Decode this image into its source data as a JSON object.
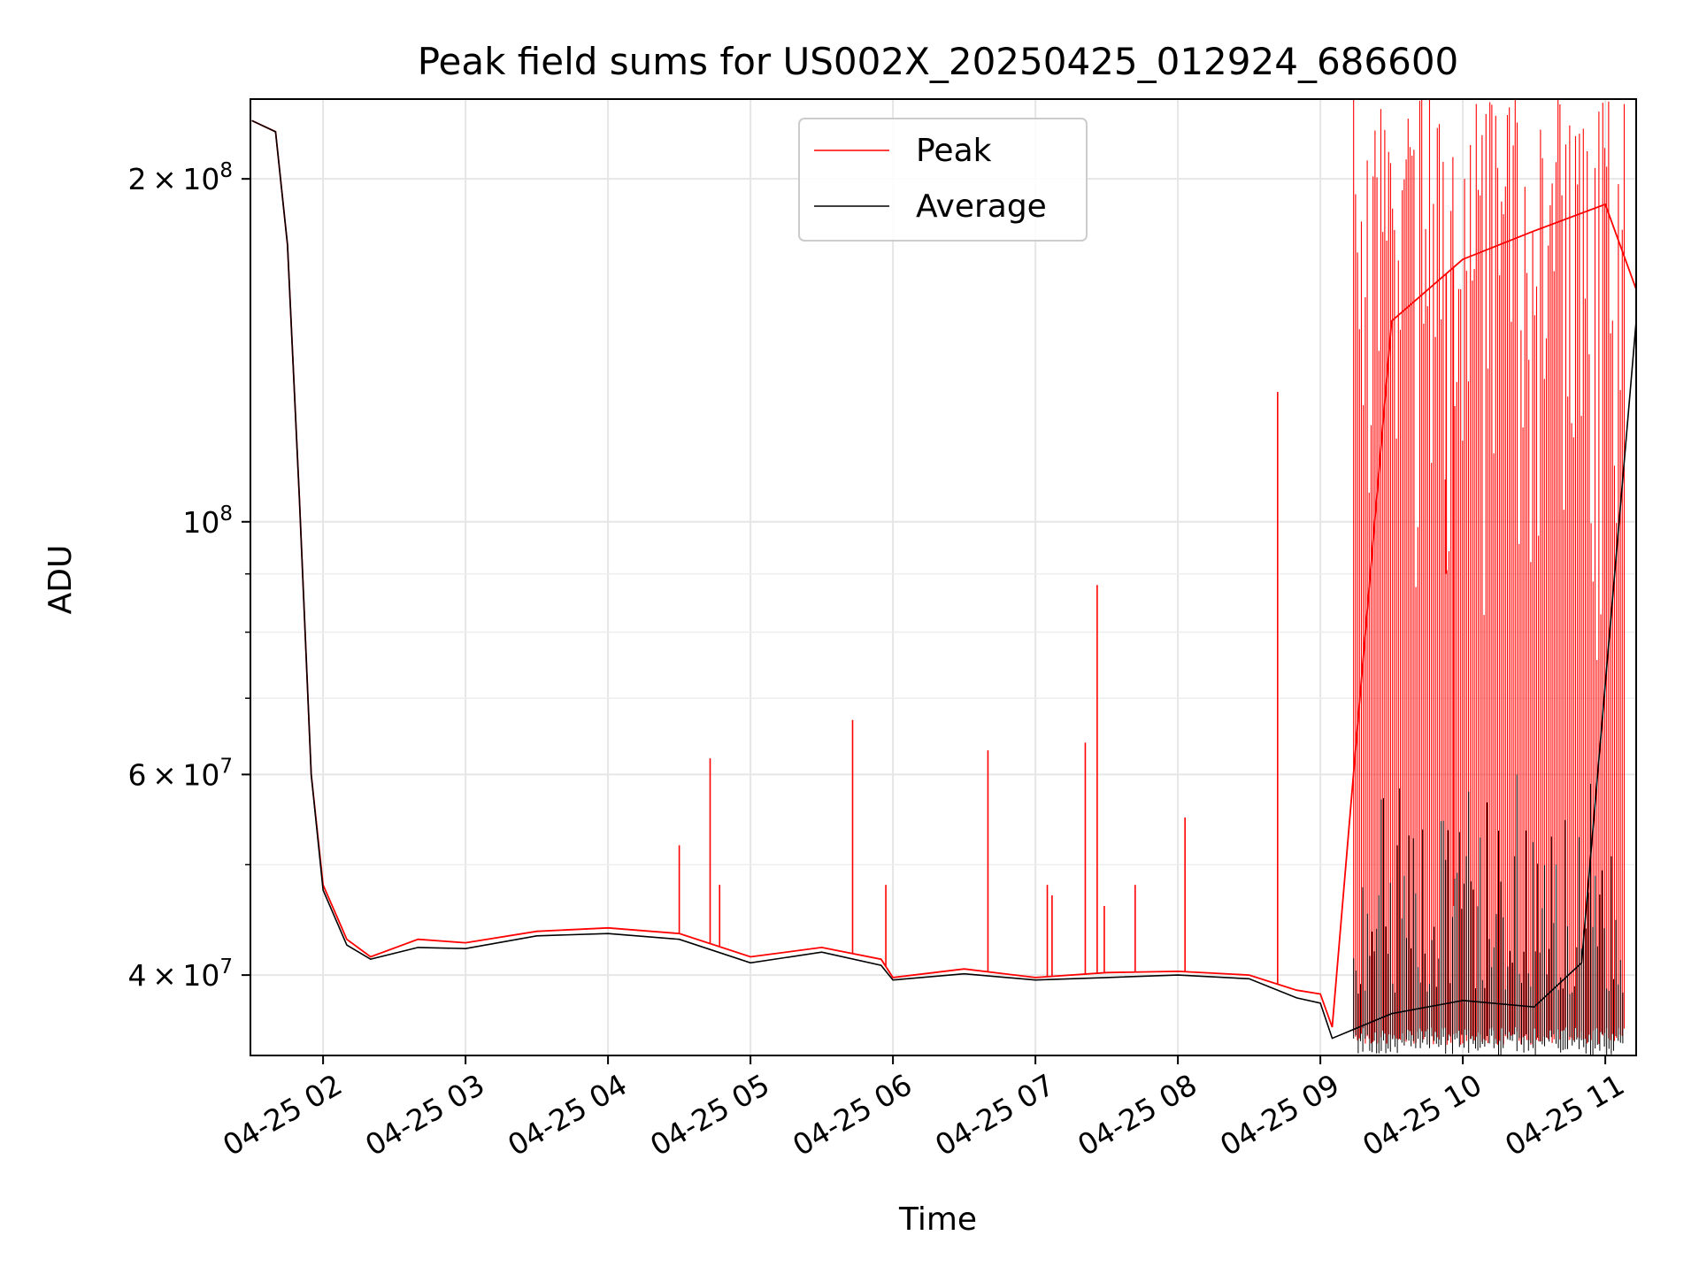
{
  "chart_data": {
    "type": "line",
    "title": "Peak field sums for US002X_20250425_012924_686600",
    "xlabel": "Time",
    "ylabel": "ADU",
    "y_scale": "log",
    "ylim": [
      34000000,
      235000000
    ],
    "xlim": [
      "04-25 01:29:24",
      "04-25 11:13"
    ],
    "x_tick_labels": [
      "04-25 02",
      "04-25 03",
      "04-25 04",
      "04-25 05",
      "04-25 06",
      "04-25 07",
      "04-25 08",
      "04-25 09",
      "04-25 10",
      "04-25 11"
    ],
    "y_tick_labels": [
      {
        "value": 40000000,
        "mantissa": "4",
        "exp": "7"
      },
      {
        "value": 60000000,
        "mantissa": "6",
        "exp": "7"
      },
      {
        "value": 100000000,
        "mantissa": "",
        "exp": "8"
      },
      {
        "value": 200000000,
        "mantissa": "2",
        "exp": "8"
      }
    ],
    "grid": true,
    "legend_position": "top-center",
    "series": [
      {
        "name": "Peak",
        "color": "#ff0000",
        "points": [
          [
            "01:30",
            225000000
          ],
          [
            "01:40",
            220000000
          ],
          [
            "01:45",
            175000000
          ],
          [
            "01:50",
            105000000
          ],
          [
            "01:55",
            60000000
          ],
          [
            "02:00",
            48000000
          ],
          [
            "02:10",
            43000000
          ],
          [
            "02:20",
            41500000
          ],
          [
            "02:40",
            43000000
          ],
          [
            "03:00",
            42700000
          ],
          [
            "03:30",
            43700000
          ],
          [
            "04:00",
            44000000
          ],
          [
            "04:30",
            43500000
          ],
          [
            "05:00",
            41500000
          ],
          [
            "05:30",
            42300000
          ],
          [
            "05:55",
            41300000
          ],
          [
            "06:00",
            39800000
          ],
          [
            "06:30",
            40500000
          ],
          [
            "07:00",
            39800000
          ],
          [
            "07:30",
            40200000
          ],
          [
            "08:00",
            40300000
          ],
          [
            "08:30",
            40000000
          ],
          [
            "08:50",
            38800000
          ],
          [
            "09:00",
            38500000
          ],
          [
            "09:05",
            36000000
          ],
          [
            "09:30",
            150000000
          ],
          [
            "10:00",
            170000000
          ],
          [
            "10:30",
            180000000
          ],
          [
            "11:00",
            190000000
          ],
          [
            "11:13",
            160000000
          ]
        ],
        "spikes": [
          [
            "04:30",
            52000000
          ],
          [
            "04:43",
            62000000
          ],
          [
            "04:47",
            48000000
          ],
          [
            "05:43",
            67000000
          ],
          [
            "05:57",
            48000000
          ],
          [
            "06:40",
            63000000
          ],
          [
            "07:05",
            48000000
          ],
          [
            "07:07",
            47000000
          ],
          [
            "07:21",
            64000000
          ],
          [
            "07:26",
            88000000
          ],
          [
            "07:29",
            46000000
          ],
          [
            "07:42",
            48000000
          ],
          [
            "08:03",
            55000000
          ],
          [
            "08:42",
            130000000
          ],
          [
            "09:53",
            90000000
          ],
          [
            "09:56",
            46000000
          ]
        ]
      },
      {
        "name": "Average",
        "color": "#000000",
        "points": [
          [
            "01:30",
            225000000
          ],
          [
            "01:40",
            220000000
          ],
          [
            "01:45",
            175000000
          ],
          [
            "01:50",
            105000000
          ],
          [
            "01:55",
            60000000
          ],
          [
            "02:00",
            47500000
          ],
          [
            "02:10",
            42500000
          ],
          [
            "02:20",
            41300000
          ],
          [
            "02:40",
            42300000
          ],
          [
            "03:00",
            42200000
          ],
          [
            "03:30",
            43300000
          ],
          [
            "04:00",
            43500000
          ],
          [
            "04:30",
            43000000
          ],
          [
            "05:00",
            41000000
          ],
          [
            "05:30",
            41900000
          ],
          [
            "05:55",
            40800000
          ],
          [
            "06:00",
            39600000
          ],
          [
            "06:30",
            40100000
          ],
          [
            "07:00",
            39600000
          ],
          [
            "07:30",
            39800000
          ],
          [
            "08:00",
            40000000
          ],
          [
            "08:30",
            39700000
          ],
          [
            "08:50",
            38200000
          ],
          [
            "09:00",
            37800000
          ],
          [
            "09:05",
            35200000
          ],
          [
            "09:30",
            37000000
          ],
          [
            "10:00",
            38000000
          ],
          [
            "10:30",
            37500000
          ],
          [
            "10:50",
            41000000
          ],
          [
            "11:13",
            150000000
          ]
        ]
      }
    ]
  }
}
